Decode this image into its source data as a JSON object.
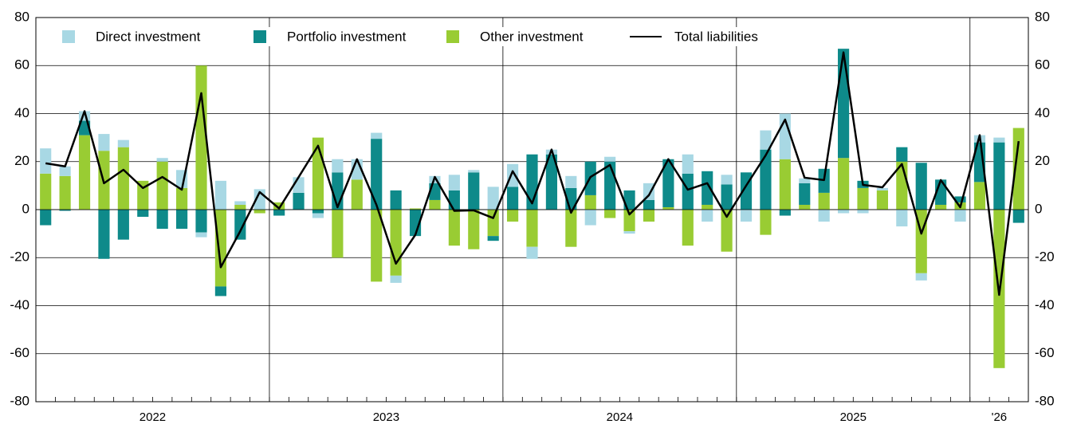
{
  "chart_data": {
    "type": "stacked-bar-line",
    "categories": [
      null,
      null,
      null,
      null,
      null,
      null,
      null,
      null,
      null,
      null,
      null,
      null,
      null,
      null,
      null,
      null,
      null,
      null,
      null,
      null,
      null,
      null,
      null,
      null,
      null,
      null,
      null,
      null,
      null,
      null,
      null,
      null,
      null,
      null,
      null,
      null,
      null,
      null,
      null,
      null,
      null,
      null,
      null,
      null,
      null,
      null,
      null,
      null,
      null,
      null,
      null
    ],
    "x_groups": [
      {
        "label": "2022",
        "count": 12
      },
      {
        "label": "2023",
        "count": 12
      },
      {
        "label": "2024",
        "count": 12
      },
      {
        "label": "2025",
        "count": 12
      },
      {
        "label": "'26",
        "count": 3
      }
    ],
    "series": [
      {
        "name": "Direct investment",
        "type": "bar",
        "color": "#a8d8e4",
        "values": [
          10.5,
          4,
          4,
          7,
          3,
          0,
          1.5,
          7.5,
          -2,
          12,
          1.5,
          8.5,
          0,
          6.5,
          -2,
          5.5,
          8.5,
          2.5,
          -3,
          0,
          3,
          6.5,
          1,
          9.5,
          9.5,
          -5,
          2,
          5,
          -6.5,
          2,
          -1,
          7,
          0,
          8,
          -5,
          4,
          -5,
          8,
          19,
          2,
          -5,
          -1.5,
          -1.5,
          1,
          -7,
          -3,
          0,
          -5,
          3,
          2,
          0
        ]
      },
      {
        "name": "Portfolio investment",
        "type": "bar",
        "color": "#0e8a8a",
        "values": [
          -6.5,
          -0.5,
          6,
          -20.5,
          -12.5,
          -3,
          -8,
          -8,
          -9.5,
          -4,
          -12.5,
          0,
          -2.5,
          7,
          -1.5,
          15.5,
          0,
          29.5,
          8,
          -11,
          7,
          8,
          15.5,
          -2,
          9.5,
          23,
          23,
          9,
          14,
          20,
          8,
          4,
          20,
          15,
          14,
          10.5,
          15.5,
          25,
          -2.5,
          9,
          10,
          45.5,
          3,
          0,
          6,
          19.5,
          10.5,
          2.5,
          16.5,
          28,
          -5.5
        ]
      },
      {
        "name": "Other investment",
        "type": "bar",
        "color": "#99cc33",
        "values": [
          15,
          14,
          31,
          24.5,
          26,
          12,
          20,
          9,
          60,
          -32,
          2,
          -1.5,
          3,
          0,
          30,
          -20,
          12.5,
          -30,
          -27.5,
          0.5,
          4,
          -15,
          -16.5,
          -11,
          -5,
          -15.5,
          0,
          -15.5,
          6,
          -3.5,
          -9,
          -5,
          1,
          -15,
          2,
          -17.5,
          0,
          -10.5,
          21,
          2,
          7,
          21.5,
          9,
          8,
          20,
          -26.5,
          2,
          3,
          11.5,
          -66,
          34
        ]
      },
      {
        "name": "Total liabilities",
        "type": "line",
        "color": "#000000",
        "values": [
          19.3,
          18,
          41,
          11,
          16.6,
          9,
          13.6,
          8.3,
          48.5,
          -24,
          -9,
          7.3,
          0.5,
          13.5,
          26.6,
          1,
          21,
          2,
          -22.5,
          -10.5,
          13.6,
          -0.5,
          -0.3,
          -3.5,
          16,
          2.6,
          25,
          -1.3,
          13.6,
          18.6,
          -2,
          6,
          21,
          8.3,
          11,
          -3,
          10,
          22.6,
          37.5,
          13.3,
          12.3,
          65.5,
          10.3,
          9.3,
          19,
          -10,
          12.3,
          1,
          31,
          -35.5,
          28.5
        ]
      }
    ],
    "ylim": [
      -80,
      80
    ],
    "yticks": [
      -80,
      -60,
      -40,
      -20,
      0,
      20,
      40,
      60,
      80
    ],
    "grid": true,
    "right_axis_mirror": true
  }
}
